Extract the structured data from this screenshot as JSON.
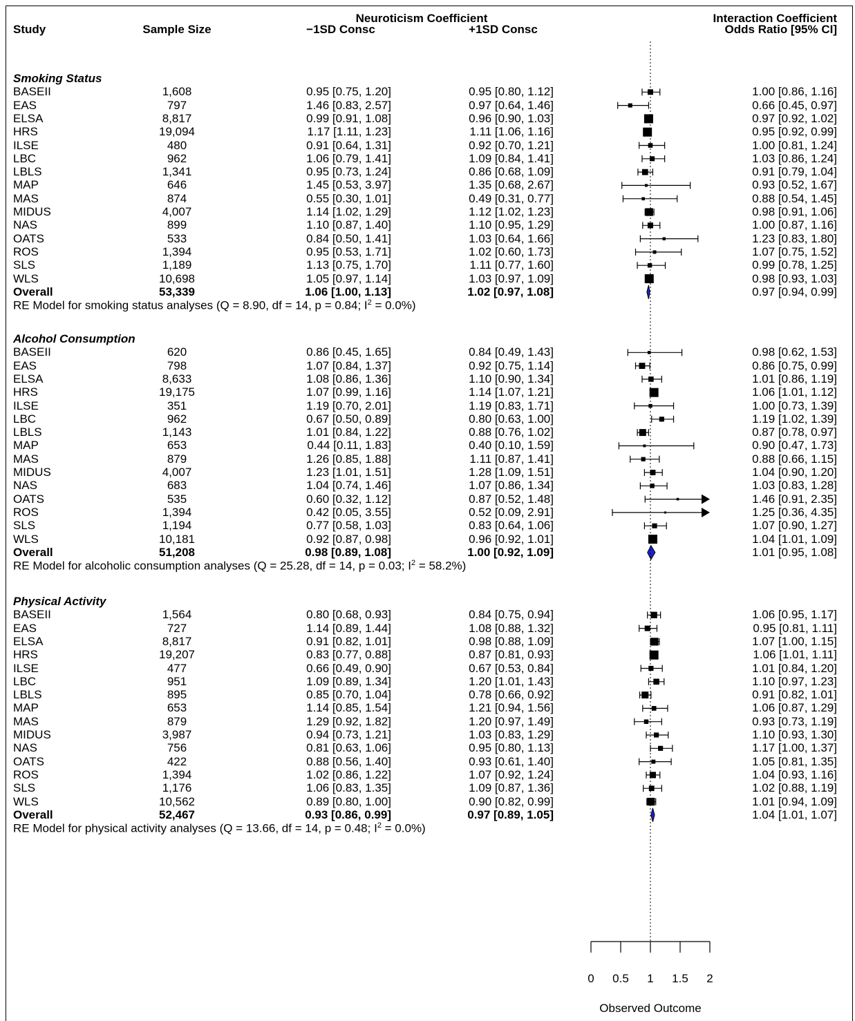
{
  "chart_data": {
    "type": "forest",
    "headers": {
      "study": "Study",
      "sample_size": "Sample Size",
      "neuro_group": "Neuroticism Coefficient",
      "minus": "−1SD Consc",
      "plus": "+1SD Consc",
      "interaction_1": "Interaction Coefficient",
      "interaction_2": "Odds Ratio [95% CI]"
    },
    "x_axis": {
      "label": "Observed Outcome",
      "ticks": [
        "0",
        "0.5",
        "1",
        "1.5",
        "2"
      ],
      "range": [
        0,
        2
      ],
      "reference_line": 1,
      "clip_max": 2
    },
    "sections": [
      {
        "title": "Smoking Status",
        "rows": [
          {
            "study": "BASEII",
            "n": "1,608",
            "minus": "0.95 [0.75, 1.20]",
            "plus": "0.95 [0.80, 1.12]",
            "ci": "1.00 [0.86, 1.16]",
            "est": 1.0,
            "lo": 0.86,
            "hi": 1.16
          },
          {
            "study": "EAS",
            "n": "797",
            "minus": "1.46 [0.83, 2.57]",
            "plus": "0.97 [0.64, 1.46]",
            "ci": "0.66 [0.45, 0.97]",
            "est": 0.66,
            "lo": 0.45,
            "hi": 0.97
          },
          {
            "study": "ELSA",
            "n": "8,817",
            "minus": "0.99 [0.91, 1.08]",
            "plus": "0.96 [0.90, 1.03]",
            "ci": "0.97 [0.92, 1.02]",
            "est": 0.97,
            "lo": 0.92,
            "hi": 1.02
          },
          {
            "study": "HRS",
            "n": "19,094",
            "minus": "1.17 [1.11, 1.23]",
            "plus": "1.11 [1.06, 1.16]",
            "ci": "0.95 [0.92, 0.99]",
            "est": 0.95,
            "lo": 0.92,
            "hi": 0.99
          },
          {
            "study": "ILSE",
            "n": "480",
            "minus": "0.91 [0.64, 1.31]",
            "plus": "0.92 [0.70, 1.21]",
            "ci": "1.00 [0.81, 1.24]",
            "est": 1.0,
            "lo": 0.81,
            "hi": 1.24
          },
          {
            "study": "LBC",
            "n": "962",
            "minus": "1.06 [0.79, 1.41]",
            "plus": "1.09 [0.84, 1.41]",
            "ci": "1.03 [0.86, 1.24]",
            "est": 1.03,
            "lo": 0.86,
            "hi": 1.24
          },
          {
            "study": "LBLS",
            "n": "1,341",
            "minus": "0.95 [0.73, 1.24]",
            "plus": "0.86 [0.68, 1.09]",
            "ci": "0.91 [0.79, 1.04]",
            "est": 0.91,
            "lo": 0.79,
            "hi": 1.04
          },
          {
            "study": "MAP",
            "n": "646",
            "minus": "1.45 [0.53, 3.97]",
            "plus": "1.35 [0.68, 2.67]",
            "ci": "0.93 [0.52, 1.67]",
            "est": 0.93,
            "lo": 0.52,
            "hi": 1.67
          },
          {
            "study": "MAS",
            "n": "874",
            "minus": "0.55 [0.30, 1.01]",
            "plus": "0.49 [0.31, 0.77]",
            "ci": "0.88 [0.54, 1.45]",
            "est": 0.88,
            "lo": 0.54,
            "hi": 1.45
          },
          {
            "study": "MIDUS",
            "n": "4,007",
            "minus": "1.14 [1.02, 1.29]",
            "plus": "1.12 [1.02, 1.23]",
            "ci": "0.98 [0.91, 1.06]",
            "est": 0.98,
            "lo": 0.91,
            "hi": 1.06
          },
          {
            "study": "NAS",
            "n": "899",
            "minus": "1.10 [0.87, 1.40]",
            "plus": "1.10 [0.95, 1.29]",
            "ci": "1.00 [0.87, 1.16]",
            "est": 1.0,
            "lo": 0.87,
            "hi": 1.16
          },
          {
            "study": "OATS",
            "n": "533",
            "minus": "0.84 [0.50, 1.41]",
            "plus": "1.03 [0.64, 1.66]",
            "ci": "1.23 [0.83, 1.80]",
            "est": 1.23,
            "lo": 0.83,
            "hi": 1.8
          },
          {
            "study": "ROS",
            "n": "1,394",
            "minus": "0.95 [0.53, 1.71]",
            "plus": "1.02 [0.60, 1.73]",
            "ci": "1.07 [0.75, 1.52]",
            "est": 1.07,
            "lo": 0.75,
            "hi": 1.52
          },
          {
            "study": "SLS",
            "n": "1,189",
            "minus": "1.13 [0.75, 1.70]",
            "plus": "1.11 [0.77, 1.60]",
            "ci": "0.99 [0.78, 1.25]",
            "est": 0.99,
            "lo": 0.78,
            "hi": 1.25
          },
          {
            "study": "WLS",
            "n": "10,698",
            "minus": "1.05 [0.97, 1.14]",
            "plus": "1.03 [0.97, 1.09]",
            "ci": "0.98 [0.93, 1.03]",
            "est": 0.98,
            "lo": 0.93,
            "hi": 1.03
          }
        ],
        "overall": {
          "study": "Overall",
          "n": "53,339",
          "minus": "1.06 [1.00, 1.13]",
          "plus": "1.02 [0.97, 1.08]",
          "ci": "0.97 [0.94, 0.99]",
          "est": 0.97,
          "lo": 0.94,
          "hi": 0.99
        },
        "model_prefix": "RE Model for smoking status analyses (Q = 8.90, df = 14, p = 0.84; I",
        "model_sup": "2",
        "model_suffix": " = 0.0%)"
      },
      {
        "title": "Alcohol Consumption",
        "rows": [
          {
            "study": "BASEII",
            "n": "620",
            "minus": "0.86 [0.45, 1.65]",
            "plus": "0.84 [0.49, 1.43]",
            "ci": "0.98 [0.62, 1.53]",
            "est": 0.98,
            "lo": 0.62,
            "hi": 1.53
          },
          {
            "study": "EAS",
            "n": "798",
            "minus": "1.07 [0.84, 1.37]",
            "plus": "0.92 [0.75, 1.14]",
            "ci": "0.86 [0.75, 0.99]",
            "est": 0.86,
            "lo": 0.75,
            "hi": 0.99
          },
          {
            "study": "ELSA",
            "n": "8,633",
            "minus": "1.08 [0.86, 1.36]",
            "plus": "1.10 [0.90, 1.34]",
            "ci": "1.01 [0.86, 1.19]",
            "est": 1.01,
            "lo": 0.86,
            "hi": 1.19
          },
          {
            "study": "HRS",
            "n": "19,175",
            "minus": "1.07 [0.99, 1.16]",
            "plus": "1.14 [1.07, 1.21]",
            "ci": "1.06 [1.01, 1.12]",
            "est": 1.06,
            "lo": 1.01,
            "hi": 1.12
          },
          {
            "study": "ILSE",
            "n": "351",
            "minus": "1.19 [0.70, 2.01]",
            "plus": "1.19 [0.83, 1.71]",
            "ci": "1.00 [0.73, 1.39]",
            "est": 1.0,
            "lo": 0.73,
            "hi": 1.39
          },
          {
            "study": "LBC",
            "n": "962",
            "minus": "0.67 [0.50, 0.89]",
            "plus": "0.80 [0.63, 1.00]",
            "ci": "1.19 [1.02, 1.39]",
            "est": 1.19,
            "lo": 1.02,
            "hi": 1.39
          },
          {
            "study": "LBLS",
            "n": "1,143",
            "minus": "1.01 [0.84, 1.22]",
            "plus": "0.88 [0.76, 1.02]",
            "ci": "0.87 [0.78, 0.97]",
            "est": 0.87,
            "lo": 0.78,
            "hi": 0.97
          },
          {
            "study": "MAP",
            "n": "653",
            "minus": "0.44 [0.11, 1.83]",
            "plus": "0.40 [0.10, 1.59]",
            "ci": "0.90 [0.47, 1.73]",
            "est": 0.9,
            "lo": 0.47,
            "hi": 1.73
          },
          {
            "study": "MAS",
            "n": "879",
            "minus": "1.26 [0.85, 1.88]",
            "plus": "1.11 [0.87, 1.41]",
            "ci": "0.88 [0.66, 1.15]",
            "est": 0.88,
            "lo": 0.66,
            "hi": 1.15
          },
          {
            "study": "MIDUS",
            "n": "4,007",
            "minus": "1.23 [1.01, 1.51]",
            "plus": "1.28 [1.09, 1.51]",
            "ci": "1.04 [0.90, 1.20]",
            "est": 1.04,
            "lo": 0.9,
            "hi": 1.2
          },
          {
            "study": "NAS",
            "n": "683",
            "minus": "1.04 [0.74, 1.46]",
            "plus": "1.07 [0.86, 1.34]",
            "ci": "1.03 [0.83, 1.28]",
            "est": 1.03,
            "lo": 0.83,
            "hi": 1.28
          },
          {
            "study": "OATS",
            "n": "535",
            "minus": "0.60 [0.32, 1.12]",
            "plus": "0.87 [0.52, 1.48]",
            "ci": "1.46 [0.91, 2.35]",
            "est": 1.46,
            "lo": 0.91,
            "hi": 2.35
          },
          {
            "study": "ROS",
            "n": "1,394",
            "minus": "0.42 [0.05, 3.55]",
            "plus": "0.52 [0.09, 2.91]",
            "ci": "1.25 [0.36, 4.35]",
            "est": 1.25,
            "lo": 0.36,
            "hi": 4.35
          },
          {
            "study": "SLS",
            "n": "1,194",
            "minus": "0.77 [0.58, 1.03]",
            "plus": "0.83 [0.64, 1.06]",
            "ci": "1.07 [0.90, 1.27]",
            "est": 1.07,
            "lo": 0.9,
            "hi": 1.27
          },
          {
            "study": "WLS",
            "n": "10,181",
            "minus": "0.92 [0.87, 0.98]",
            "plus": "0.96 [0.92, 1.01]",
            "ci": "1.04 [1.01, 1.09]",
            "est": 1.04,
            "lo": 1.01,
            "hi": 1.09
          }
        ],
        "overall": {
          "study": "Overall",
          "n": "51,208",
          "minus": "0.98 [0.89, 1.08]",
          "plus": "1.00 [0.92, 1.09]",
          "ci": "1.01 [0.95, 1.08]",
          "est": 1.01,
          "lo": 0.95,
          "hi": 1.08
        },
        "model_prefix": "RE Model for alcoholic consumption analyses (Q = 25.28, df = 14, p = 0.03; I",
        "model_sup": "2",
        "model_suffix": " = 58.2%)"
      },
      {
        "title": "Physical Activity",
        "rows": [
          {
            "study": "BASEII",
            "n": "1,564",
            "minus": "0.80 [0.68, 0.93]",
            "plus": "0.84 [0.75, 0.94]",
            "ci": "1.06 [0.95, 1.17]",
            "est": 1.06,
            "lo": 0.95,
            "hi": 1.17
          },
          {
            "study": "EAS",
            "n": "727",
            "minus": "1.14 [0.89, 1.44]",
            "plus": "1.08 [0.88, 1.32]",
            "ci": "0.95 [0.81, 1.11]",
            "est": 0.95,
            "lo": 0.81,
            "hi": 1.11
          },
          {
            "study": "ELSA",
            "n": "8,817",
            "minus": "0.91 [0.82, 1.01]",
            "plus": "0.98 [0.88, 1.09]",
            "ci": "1.07 [1.00, 1.15]",
            "est": 1.07,
            "lo": 1.0,
            "hi": 1.15
          },
          {
            "study": "HRS",
            "n": "19,207",
            "minus": "0.83 [0.77, 0.88]",
            "plus": "0.87 [0.81, 0.93]",
            "ci": "1.06 [1.01, 1.11]",
            "est": 1.06,
            "lo": 1.01,
            "hi": 1.11
          },
          {
            "study": "ILSE",
            "n": "477",
            "minus": "0.66 [0.49, 0.90]",
            "plus": "0.67 [0.53, 0.84]",
            "ci": "1.01 [0.84, 1.20]",
            "est": 1.01,
            "lo": 0.84,
            "hi": 1.2
          },
          {
            "study": "LBC",
            "n": "951",
            "minus": "1.09 [0.89, 1.34]",
            "plus": "1.20 [1.01, 1.43]",
            "ci": "1.10 [0.97, 1.23]",
            "est": 1.1,
            "lo": 0.97,
            "hi": 1.23
          },
          {
            "study": "LBLS",
            "n": "895",
            "minus": "0.85 [0.70, 1.04]",
            "plus": "0.78 [0.66, 0.92]",
            "ci": "0.91 [0.82, 1.01]",
            "est": 0.91,
            "lo": 0.82,
            "hi": 1.01
          },
          {
            "study": "MAP",
            "n": "653",
            "minus": "1.14 [0.85, 1.54]",
            "plus": "1.21 [0.94, 1.56]",
            "ci": "1.06 [0.87, 1.29]",
            "est": 1.06,
            "lo": 0.87,
            "hi": 1.29
          },
          {
            "study": "MAS",
            "n": "879",
            "minus": "1.29 [0.92, 1.82]",
            "plus": "1.20 [0.97, 1.49]",
            "ci": "0.93 [0.73, 1.19]",
            "est": 0.93,
            "lo": 0.73,
            "hi": 1.19
          },
          {
            "study": "MIDUS",
            "n": "3,987",
            "minus": "0.94 [0.73, 1.21]",
            "plus": "1.03 [0.83, 1.29]",
            "ci": "1.10 [0.93, 1.30]",
            "est": 1.1,
            "lo": 0.93,
            "hi": 1.3
          },
          {
            "study": "NAS",
            "n": "756",
            "minus": "0.81 [0.63, 1.06]",
            "plus": "0.95 [0.80, 1.13]",
            "ci": "1.17 [1.00, 1.37]",
            "est": 1.17,
            "lo": 1.0,
            "hi": 1.37
          },
          {
            "study": "OATS",
            "n": "422",
            "minus": "0.88 [0.56, 1.40]",
            "plus": "0.93 [0.61, 1.40]",
            "ci": "1.05 [0.81, 1.35]",
            "est": 1.05,
            "lo": 0.81,
            "hi": 1.35
          },
          {
            "study": "ROS",
            "n": "1,394",
            "minus": "1.02 [0.86, 1.22]",
            "plus": "1.07 [0.92, 1.24]",
            "ci": "1.04 [0.93, 1.16]",
            "est": 1.04,
            "lo": 0.93,
            "hi": 1.16
          },
          {
            "study": "SLS",
            "n": "1,176",
            "minus": "1.06 [0.83, 1.35]",
            "plus": "1.09 [0.87, 1.36]",
            "ci": "1.02 [0.88, 1.19]",
            "est": 1.02,
            "lo": 0.88,
            "hi": 1.19
          },
          {
            "study": "WLS",
            "n": "10,562",
            "minus": "0.89 [0.80, 1.00]",
            "plus": "0.90 [0.82, 0.99]",
            "ci": "1.01 [0.94, 1.09]",
            "est": 1.01,
            "lo": 0.94,
            "hi": 1.09
          }
        ],
        "overall": {
          "study": "Overall",
          "n": "52,467",
          "minus": "0.93 [0.86, 0.99]",
          "plus": "0.97 [0.89, 1.05]",
          "ci": "1.04 [1.01, 1.07]",
          "est": 1.04,
          "lo": 1.01,
          "hi": 1.07
        },
        "model_prefix": "RE Model for physical activity analyses (Q = 13.66, df = 14, p = 0.48; I",
        "model_sup": "2",
        "model_suffix": " = 0.0%)"
      }
    ],
    "colors": {
      "diamond_fill": "#1f1fd6",
      "ink": "#000000"
    }
  }
}
